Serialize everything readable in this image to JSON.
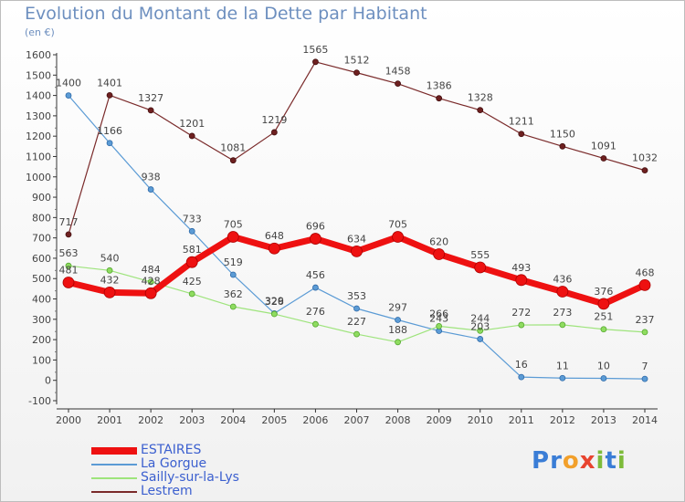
{
  "title": "Evolution du Montant de la Dette par Habitant",
  "unit": "(en €)",
  "logo": {
    "letters": [
      "P",
      "r",
      "o",
      "x",
      "i",
      "t",
      "i"
    ],
    "colors": [
      "#3a7dd6",
      "#3a7dd6",
      "#f2a02b",
      "#e8442f",
      "#7dbb3a",
      "#3a7dd6",
      "#7dbb3a"
    ]
  },
  "chart_data": {
    "type": "line",
    "title": "Evolution du Montant de la Dette par Habitant",
    "ylabel": "(en €)",
    "xlabel": "",
    "x": [
      "2000",
      "2001",
      "2002",
      "2003",
      "2004",
      "2005",
      "2006",
      "2007",
      "2008",
      "2009",
      "2010",
      "2011",
      "2012",
      "2013",
      "2014"
    ],
    "ylim": [
      -100,
      1600
    ],
    "yticks": [
      "-100",
      "0",
      "100",
      "200",
      "300",
      "400",
      "500",
      "600",
      "700",
      "800",
      "900",
      "1000",
      "1100",
      "1200",
      "1300",
      "1400",
      "1500",
      "1600"
    ],
    "grid": false,
    "legend_position": "bottom-left",
    "series": [
      {
        "name": "ESTAIRES",
        "color": "#ee1111",
        "values": [
          481,
          432,
          428,
          581,
          705,
          648,
          696,
          634,
          705,
          620,
          555,
          493,
          436,
          376,
          468
        ]
      },
      {
        "name": "La Gorgue",
        "color": "#5b9bd5",
        "values": [
          1400,
          1166,
          938,
          733,
          519,
          329,
          456,
          353,
          297,
          243,
          203,
          16,
          11,
          10,
          7
        ]
      },
      {
        "name": "Sailly-sur-la-Lys",
        "color": "#9ee47c",
        "values": [
          563,
          540,
          484,
          425,
          362,
          326,
          276,
          227,
          188,
          266,
          244,
          272,
          273,
          251,
          237
        ]
      },
      {
        "name": "Lestrem",
        "color": "#7a2a2a",
        "values": [
          717,
          1401,
          1327,
          1201,
          1081,
          1219,
          1565,
          1512,
          1458,
          1386,
          1328,
          1211,
          1150,
          1091,
          1032
        ]
      }
    ]
  }
}
